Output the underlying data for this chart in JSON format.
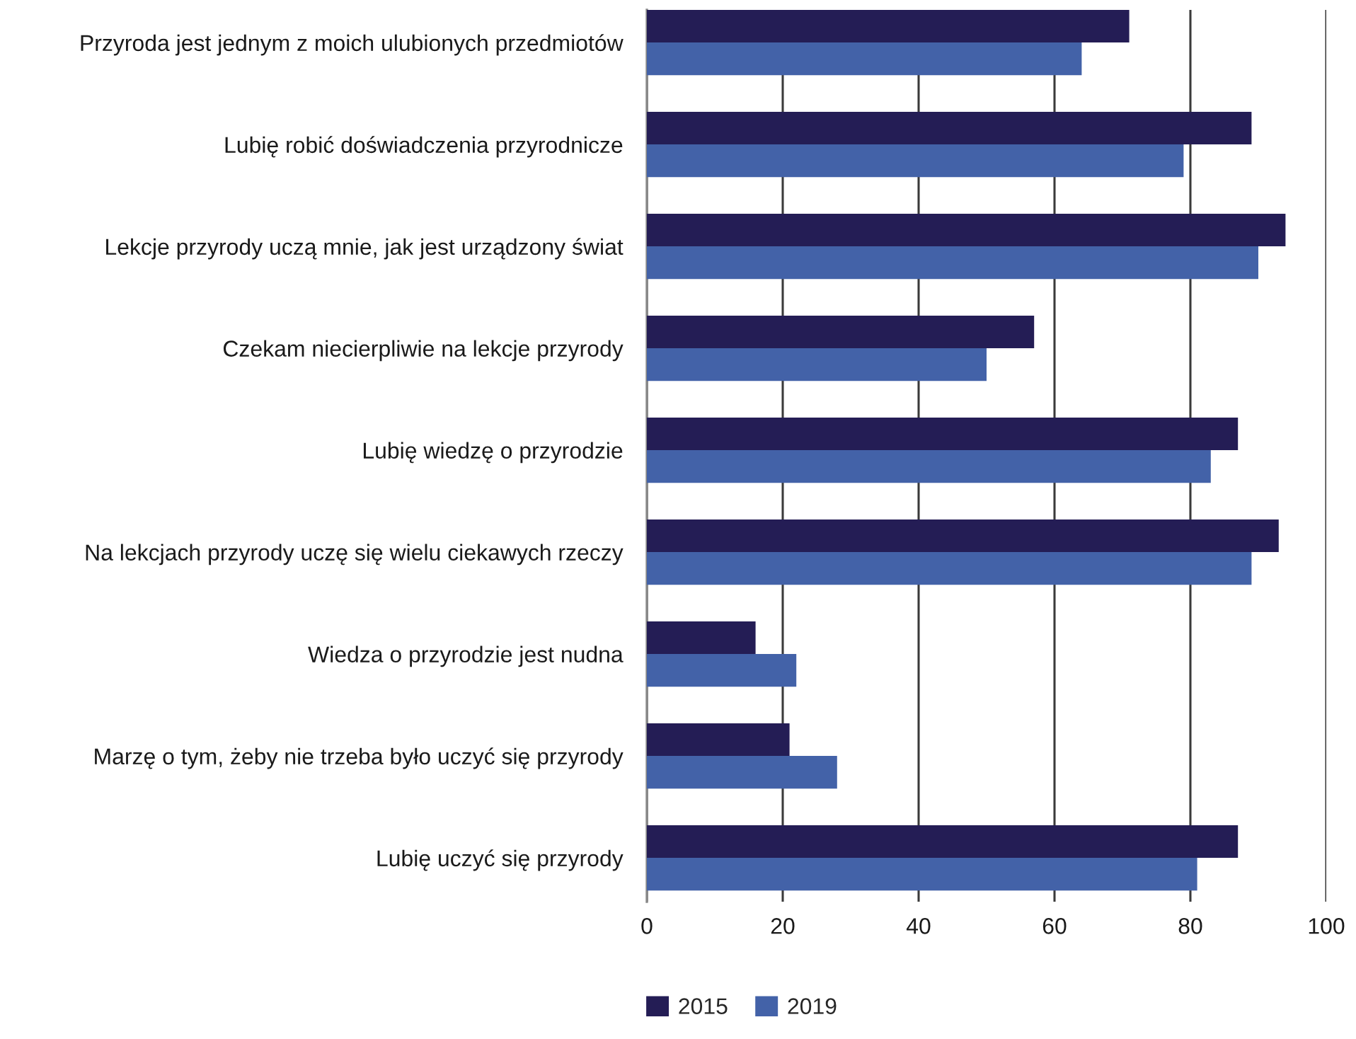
{
  "chart_data": {
    "type": "bar",
    "orientation": "horizontal",
    "categories": [
      "Przyroda jest jednym z moich ulubionych przedmiotów",
      "Lubię robić doświadczenia przyrodnicze",
      "Lekcje przyrody uczą mnie, jak jest urządzony świat",
      "Czekam niecierpliwie na lekcje przyrody",
      "Lubię wiedzę o przyrodzie",
      "Na lekcjach przyrody uczę się wielu ciekawych rzeczy",
      "Wiedza o przyrodzie jest nudna",
      "Marzę o tym, żeby nie trzeba było uczyć się przyrody",
      "Lubię uczyć się przyrody"
    ],
    "series": [
      {
        "name": "2015",
        "color": "#241d55",
        "values": [
          71,
          89,
          94,
          57,
          87,
          93,
          16,
          21,
          87
        ]
      },
      {
        "name": "2019",
        "color": "#4362a8",
        "values": [
          64,
          79,
          90,
          50,
          83,
          89,
          22,
          28,
          81
        ]
      }
    ],
    "xlim": [
      0,
      100
    ],
    "xticks": [
      0,
      20,
      40,
      60,
      80,
      100
    ],
    "grid": "x",
    "legend": "bottom"
  }
}
